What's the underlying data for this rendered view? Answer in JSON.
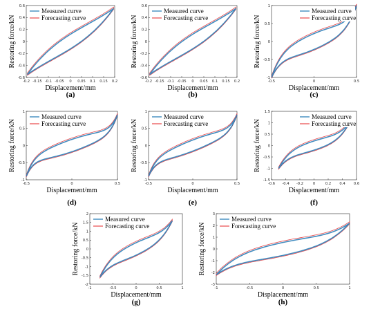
{
  "colors": {
    "measured": "#1f77b4",
    "forecast": "#e8484a",
    "axis": "#262626"
  },
  "chart_data": [
    {
      "type": "line",
      "caption": "(a)",
      "ylabel": "Restoring force/kN",
      "xlabel": "Displacement/mm",
      "legend": [
        "Measured curve",
        "Forecasting curve"
      ],
      "legend_position": "top-left",
      "grid": false,
      "xlim": [
        -0.2,
        0.2
      ],
      "ylim": [
        -0.6,
        0.6
      ],
      "xticks": [
        "-0.2",
        "-0.15",
        "-0.1",
        "-0.05",
        "0",
        "0.05",
        "0.1",
        "0.15",
        "0.2"
      ],
      "yticks": [
        "-0.6",
        "-0.4",
        "-0.2",
        "0",
        "0.2",
        "0.4",
        "0.6"
      ],
      "xticks_v": [
        -0.2,
        -0.15,
        -0.1,
        -0.05,
        0,
        0.05,
        0.1,
        0.15,
        0.2
      ],
      "yticks_v": [
        -0.6,
        -0.4,
        -0.2,
        0,
        0.2,
        0.4,
        0.6
      ],
      "loop": {
        "amp": 0.195,
        "peak": 0.55,
        "lin": 0.82,
        "hyst": 0.22,
        "p": 3
      }
    },
    {
      "type": "line",
      "caption": "(b)",
      "ylabel": "Restoring force/kN",
      "xlabel": "Displacement/mm",
      "legend": [
        "Measured curve",
        "Forecasting curve"
      ],
      "legend_position": "top-left",
      "grid": false,
      "xlim": [
        -0.2,
        0.2
      ],
      "ylim": [
        -0.6,
        0.6
      ],
      "xticks": [
        "-0.2",
        "-0.15",
        "-0.1",
        "-0.05",
        "0",
        "0.05",
        "0.1",
        "0.15",
        "0.2"
      ],
      "yticks": [
        "-0.6",
        "-0.4",
        "-0.2",
        "0",
        "0.2",
        "0.4",
        "0.6"
      ],
      "xticks_v": [
        -0.2,
        -0.15,
        -0.1,
        -0.05,
        0,
        0.05,
        0.1,
        0.15,
        0.2
      ],
      "yticks_v": [
        -0.6,
        -0.4,
        -0.2,
        0,
        0.2,
        0.4,
        0.6
      ],
      "loop": {
        "amp": 0.195,
        "peak": 0.55,
        "lin": 0.82,
        "hyst": 0.22,
        "p": 3
      }
    },
    {
      "type": "line",
      "caption": "(c)",
      "ylabel": "Restoring force/kN",
      "xlabel": "Displacement/mm",
      "legend": [
        "Measured curve",
        "Forecasting curve"
      ],
      "legend_position": "top-right",
      "grid": false,
      "xlim": [
        -0.5,
        0.5
      ],
      "ylim": [
        -1,
        1
      ],
      "xticks": [
        "-0.5",
        "0",
        "0.5"
      ],
      "yticks": [
        "-1",
        "-0.5",
        "0",
        "0.5",
        "1"
      ],
      "xticks_v": [
        -0.5,
        0,
        0.5
      ],
      "yticks_v": [
        -1,
        -0.5,
        0,
        0.5,
        1
      ],
      "loop": {
        "amp": 0.5,
        "peak": 1.0,
        "lin": 0.5,
        "hyst": 0.22,
        "p": 5
      }
    },
    {
      "type": "line",
      "caption": "(d)",
      "ylabel": "Restoring force/kN",
      "xlabel": "Displacement/mm",
      "legend": [
        "Measured curve",
        "Forecasting curve"
      ],
      "legend_position": "top-left",
      "grid": false,
      "xlim": [
        -0.5,
        0.5
      ],
      "ylim": [
        -1,
        1
      ],
      "xticks": [
        "-0.5",
        "0",
        "0.5"
      ],
      "yticks": [
        "-1",
        "-0.5",
        "0",
        "0.5",
        "1"
      ],
      "xticks_v": [
        -0.5,
        0,
        0.5
      ],
      "yticks_v": [
        -1,
        -0.5,
        0,
        0.5,
        1
      ],
      "loop": {
        "amp": 0.5,
        "peak": 0.9,
        "lin": 0.5,
        "hyst": 0.2,
        "p": 7
      }
    },
    {
      "type": "line",
      "caption": "(e)",
      "ylabel": "Restoring force/kN",
      "xlabel": "Displacement/mm",
      "legend": [
        "Measured curve",
        "Forecasting curve"
      ],
      "legend_position": "top-left",
      "grid": false,
      "xlim": [
        -0.5,
        0.5
      ],
      "ylim": [
        -1,
        1
      ],
      "xticks": [
        "-0.5",
        "0",
        "0.5"
      ],
      "yticks": [
        "-1",
        "-0.5",
        "0",
        "0.5",
        "1"
      ],
      "xticks_v": [
        -0.5,
        0,
        0.5
      ],
      "yticks_v": [
        -1,
        -0.5,
        0,
        0.5,
        1
      ],
      "loop": {
        "amp": 0.5,
        "peak": 0.9,
        "lin": 0.55,
        "hyst": 0.18,
        "p": 7
      }
    },
    {
      "type": "line",
      "caption": "(f)",
      "ylabel": "Restoring force/kN",
      "xlabel": "Displacement/mm",
      "legend": [
        "Measured curve",
        "Forecasting curve"
      ],
      "legend_position": "top-right",
      "grid": false,
      "xlim": [
        -0.6,
        0.6
      ],
      "ylim": [
        -1.5,
        1.5
      ],
      "xticks": [
        "-0.6",
        "-0.4",
        "-0.2",
        "0",
        "0.2",
        "0.4",
        "0.6"
      ],
      "yticks": [
        "-1.5",
        "-1",
        "-0.5",
        "0",
        "0.5",
        "1",
        "1.5"
      ],
      "xticks_v": [
        -0.6,
        -0.4,
        -0.2,
        0,
        0.2,
        0.4,
        0.6
      ],
      "yticks_v": [
        -1.5,
        -1,
        -0.5,
        0,
        0.5,
        1,
        1.5
      ],
      "loop": {
        "amp": 0.5,
        "peak": 1.0,
        "lin": 0.5,
        "hyst": 0.2,
        "p": 4
      }
    },
    {
      "type": "line",
      "caption": "(g)",
      "ylabel": "Restoring force/kN",
      "xlabel": "Displacement/mm",
      "legend": [
        "Measured curve",
        "Forecasting curve"
      ],
      "legend_position": "top-left",
      "grid": false,
      "xlim": [
        -1,
        1
      ],
      "ylim": [
        -2,
        2
      ],
      "xticks": [
        "-1",
        "-0.5",
        "0",
        "0.5",
        "1"
      ],
      "yticks": [
        "-2",
        "-1.5",
        "-1",
        "-0.5",
        "0",
        "0.5",
        "1",
        "1.5",
        "2"
      ],
      "xticks_v": [
        -1,
        -0.5,
        0,
        0.5,
        1
      ],
      "yticks_v": [
        -2,
        -1.5,
        -1,
        -0.5,
        0,
        0.5,
        1,
        1.5,
        2
      ],
      "loop": {
        "amp": 0.78,
        "peak": 1.6,
        "lin": 0.6,
        "hyst": 0.22,
        "p": 4
      }
    },
    {
      "type": "line",
      "caption": "(h)",
      "ylabel": "Restoring force/kN",
      "xlabel": "Displacement/mm",
      "legend": [
        "Measured curve",
        "Forecasting curve"
      ],
      "legend_position": "top-left",
      "grid": false,
      "xlim": [
        -1,
        1
      ],
      "ylim": [
        -3,
        3
      ],
      "xticks": [
        "-1",
        "-0.5",
        "0",
        "0.5",
        "1"
      ],
      "yticks": [
        "-3",
        "-2",
        "-1",
        "0",
        "1",
        "2",
        "3"
      ],
      "xticks_v": [
        -1,
        -0.5,
        0,
        0.5,
        1
      ],
      "yticks_v": [
        -3,
        -2,
        -1,
        0,
        1,
        2,
        3
      ],
      "loop": {
        "amp": 1.0,
        "peak": 2.2,
        "lin": 0.55,
        "hyst": 0.25,
        "p": 4
      }
    }
  ]
}
